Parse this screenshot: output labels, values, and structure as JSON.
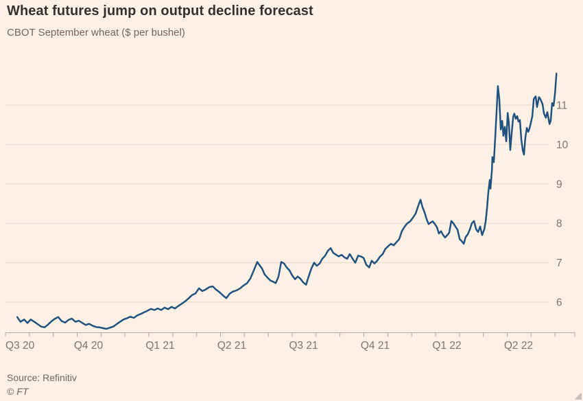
{
  "chart_data": {
    "type": "line",
    "title": "Wheat futures jump on output decline forecast",
    "subtitle": "CBOT September wheat ($ per bushel)",
    "grid": true,
    "legend": "none",
    "line_color": "#205280",
    "x_axis": {
      "labels": [
        "Q3 20",
        "Q4 20",
        "Q1 21",
        "Q2 21",
        "Q3 21",
        "Q4 21",
        "Q1 22",
        "Q2 22"
      ],
      "start": "Jul 2020",
      "minor_ticks": "monthly",
      "unit_of_t": "months since Jul 2020"
    },
    "y_axis": {
      "ticks": [
        6,
        7,
        8,
        9,
        10,
        11
      ],
      "range": [
        5.1,
        12.0
      ],
      "position": "right"
    },
    "series": [
      {
        "name": "CBOT September wheat",
        "unit": "$ per bushel",
        "points": [
          [
            0.49,
            5.62
          ],
          [
            0.63,
            5.5
          ],
          [
            0.78,
            5.56
          ],
          [
            0.92,
            5.47
          ],
          [
            1.06,
            5.56
          ],
          [
            1.21,
            5.5
          ],
          [
            1.35,
            5.44
          ],
          [
            1.49,
            5.38
          ],
          [
            1.64,
            5.36
          ],
          [
            1.78,
            5.43
          ],
          [
            1.92,
            5.51
          ],
          [
            2.07,
            5.58
          ],
          [
            2.21,
            5.62
          ],
          [
            2.35,
            5.52
          ],
          [
            2.5,
            5.48
          ],
          [
            2.64,
            5.55
          ],
          [
            2.78,
            5.58
          ],
          [
            2.93,
            5.5
          ],
          [
            3.07,
            5.53
          ],
          [
            3.22,
            5.47
          ],
          [
            3.36,
            5.42
          ],
          [
            3.5,
            5.45
          ],
          [
            3.65,
            5.4
          ],
          [
            3.79,
            5.37
          ],
          [
            3.93,
            5.36
          ],
          [
            4.08,
            5.34
          ],
          [
            4.22,
            5.32
          ],
          [
            4.36,
            5.35
          ],
          [
            4.51,
            5.38
          ],
          [
            4.65,
            5.44
          ],
          [
            4.79,
            5.5
          ],
          [
            4.94,
            5.56
          ],
          [
            5.08,
            5.59
          ],
          [
            5.23,
            5.63
          ],
          [
            5.37,
            5.6
          ],
          [
            5.51,
            5.66
          ],
          [
            5.66,
            5.7
          ],
          [
            5.8,
            5.74
          ],
          [
            5.94,
            5.78
          ],
          [
            6.09,
            5.83
          ],
          [
            6.23,
            5.8
          ],
          [
            6.37,
            5.84
          ],
          [
            6.52,
            5.8
          ],
          [
            6.66,
            5.86
          ],
          [
            6.8,
            5.82
          ],
          [
            6.95,
            5.88
          ],
          [
            7.09,
            5.84
          ],
          [
            7.23,
            5.9
          ],
          [
            7.38,
            5.96
          ],
          [
            7.52,
            6.02
          ],
          [
            7.67,
            6.1
          ],
          [
            7.81,
            6.18
          ],
          [
            7.95,
            6.22
          ],
          [
            8.1,
            6.35
          ],
          [
            8.24,
            6.28
          ],
          [
            8.38,
            6.32
          ],
          [
            8.53,
            6.38
          ],
          [
            8.67,
            6.4
          ],
          [
            8.81,
            6.32
          ],
          [
            8.96,
            6.25
          ],
          [
            9.1,
            6.17
          ],
          [
            9.24,
            6.1
          ],
          [
            9.39,
            6.22
          ],
          [
            9.53,
            6.27
          ],
          [
            9.68,
            6.3
          ],
          [
            9.82,
            6.35
          ],
          [
            9.96,
            6.42
          ],
          [
            10.11,
            6.48
          ],
          [
            10.25,
            6.6
          ],
          [
            10.39,
            6.8
          ],
          [
            10.54,
            7.02
          ],
          [
            10.62,
            6.95
          ],
          [
            10.74,
            6.85
          ],
          [
            10.85,
            6.7
          ],
          [
            10.97,
            6.62
          ],
          [
            11.08,
            6.55
          ],
          [
            11.2,
            6.52
          ],
          [
            11.31,
            6.48
          ],
          [
            11.43,
            6.65
          ],
          [
            11.54,
            7.02
          ],
          [
            11.66,
            6.98
          ],
          [
            11.77,
            6.88
          ],
          [
            11.89,
            6.8
          ],
          [
            12,
            6.68
          ],
          [
            12.12,
            6.58
          ],
          [
            12.23,
            6.65
          ],
          [
            12.34,
            6.6
          ],
          [
            12.46,
            6.5
          ],
          [
            12.58,
            6.44
          ],
          [
            12.69,
            6.65
          ],
          [
            12.8,
            6.85
          ],
          [
            12.92,
            7
          ],
          [
            13.03,
            6.92
          ],
          [
            13.15,
            6.98
          ],
          [
            13.26,
            7.1
          ],
          [
            13.38,
            7.18
          ],
          [
            13.49,
            7.3
          ],
          [
            13.61,
            7.37
          ],
          [
            13.72,
            7.25
          ],
          [
            13.84,
            7.2
          ],
          [
            13.95,
            7.16
          ],
          [
            14.07,
            7.2
          ],
          [
            14.18,
            7.14
          ],
          [
            14.3,
            7.1
          ],
          [
            14.41,
            7.22
          ],
          [
            14.53,
            7.1
          ],
          [
            14.64,
            7
          ],
          [
            14.76,
            7.18
          ],
          [
            14.87,
            7.16
          ],
          [
            14.99,
            7.12
          ],
          [
            15.1,
            6.95
          ],
          [
            15.22,
            6.88
          ],
          [
            15.33,
            7.05
          ],
          [
            15.44,
            6.98
          ],
          [
            15.56,
            7.05
          ],
          [
            15.67,
            7.15
          ],
          [
            15.79,
            7.22
          ],
          [
            15.9,
            7.35
          ],
          [
            16.02,
            7.42
          ],
          [
            16.13,
            7.48
          ],
          [
            16.25,
            7.44
          ],
          [
            16.36,
            7.52
          ],
          [
            16.48,
            7.6
          ],
          [
            16.59,
            7.8
          ],
          [
            16.71,
            7.92
          ],
          [
            16.82,
            8
          ],
          [
            16.94,
            8.05
          ],
          [
            17.05,
            8.14
          ],
          [
            17.17,
            8.25
          ],
          [
            17.28,
            8.45
          ],
          [
            17.37,
            8.6
          ],
          [
            17.45,
            8.42
          ],
          [
            17.54,
            8.28
          ],
          [
            17.63,
            8.1
          ],
          [
            17.71,
            7.98
          ],
          [
            17.8,
            8.02
          ],
          [
            17.88,
            8.05
          ],
          [
            17.97,
            7.98
          ],
          [
            18.06,
            7.9
          ],
          [
            18.14,
            7.74
          ],
          [
            18.23,
            7.8
          ],
          [
            18.32,
            7.7
          ],
          [
            18.4,
            7.64
          ],
          [
            18.49,
            7.7
          ],
          [
            18.57,
            7.76
          ],
          [
            18.66,
            8.06
          ],
          [
            18.75,
            8
          ],
          [
            18.83,
            7.92
          ],
          [
            18.92,
            7.84
          ],
          [
            19.01,
            7.6
          ],
          [
            19.09,
            7.55
          ],
          [
            19.18,
            7.48
          ],
          [
            19.26,
            7.65
          ],
          [
            19.35,
            7.72
          ],
          [
            19.44,
            7.85
          ],
          [
            19.52,
            8
          ],
          [
            19.61,
            8.06
          ],
          [
            19.7,
            7.85
          ],
          [
            19.78,
            7.78
          ],
          [
            19.87,
            7.92
          ],
          [
            19.95,
            7.7
          ],
          [
            20.04,
            7.85
          ],
          [
            20.1,
            8.05
          ],
          [
            20.16,
            8.4
          ],
          [
            20.21,
            8.8
          ],
          [
            20.27,
            9.1
          ],
          [
            20.3,
            8.88
          ],
          [
            20.36,
            9.35
          ],
          [
            20.38,
            9.68
          ],
          [
            20.44,
            9.55
          ],
          [
            20.5,
            10.2
          ],
          [
            20.56,
            10.9
          ],
          [
            20.61,
            11.48
          ],
          [
            20.67,
            11.15
          ],
          [
            20.73,
            10.38
          ],
          [
            20.79,
            10.6
          ],
          [
            20.84,
            10.22
          ],
          [
            20.9,
            10.45
          ],
          [
            20.96,
            10.08
          ],
          [
            21.02,
            10.8
          ],
          [
            21.07,
            10.55
          ],
          [
            21.13,
            9.86
          ],
          [
            21.19,
            10.3
          ],
          [
            21.25,
            10.7
          ],
          [
            21.3,
            10.78
          ],
          [
            21.36,
            10.65
          ],
          [
            21.42,
            10.72
          ],
          [
            21.47,
            10.58
          ],
          [
            21.53,
            10.62
          ],
          [
            21.59,
            10.12
          ],
          [
            21.65,
            9.86
          ],
          [
            21.7,
            9.74
          ],
          [
            21.76,
            10.18
          ],
          [
            21.82,
            10.42
          ],
          [
            21.88,
            10.32
          ],
          [
            21.93,
            10.4
          ],
          [
            21.99,
            10.55
          ],
          [
            22.05,
            10.72
          ],
          [
            22.11,
            11.15
          ],
          [
            22.19,
            11.22
          ],
          [
            22.25,
            10.95
          ],
          [
            22.33,
            11.2
          ],
          [
            22.39,
            11.15
          ],
          [
            22.48,
            11.02
          ],
          [
            22.54,
            10.78
          ],
          [
            22.62,
            10.68
          ],
          [
            22.68,
            10.82
          ],
          [
            22.77,
            10.52
          ],
          [
            22.82,
            10.6
          ],
          [
            22.88,
            11.05
          ],
          [
            22.94,
            10.98
          ],
          [
            23,
            11.3
          ],
          [
            23.06,
            11.8
          ]
        ]
      }
    ]
  },
  "footer": {
    "source": "Source: Refinitiv",
    "copyright": "© FT"
  },
  "style": {
    "background": "#fdf0e4",
    "title_color": "#33302e",
    "subtitle_color": "#6e675f",
    "tick_label_color": "#7d756c",
    "grid_color": "#e7dacb",
    "axis_color": "#b2a89c",
    "line_color": "#205280"
  }
}
